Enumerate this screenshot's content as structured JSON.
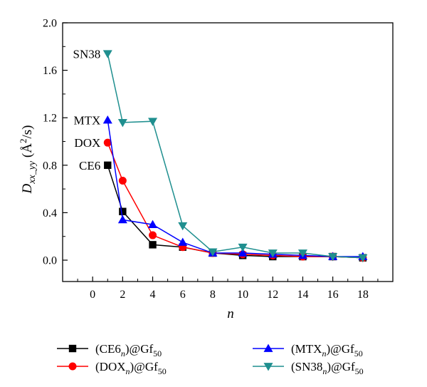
{
  "chart_data": {
    "type": "line",
    "x_ticks": [
      "0",
      "2",
      "4",
      "6",
      "8",
      "10",
      "12",
      "14",
      "16",
      "18"
    ],
    "x_tick_values": [
      0,
      2,
      4,
      6,
      8,
      10,
      12,
      14,
      16,
      18
    ],
    "y_ticks": [
      "0.0",
      "0.4",
      "0.8",
      "1.2",
      "1.6",
      "2.0"
    ],
    "y_tick_values": [
      0,
      0.4,
      0.8,
      1.2,
      1.6,
      2.0
    ],
    "xlim": [
      -2,
      20
    ],
    "ylim": [
      -0.18,
      2.0
    ],
    "xlabel": "n",
    "ylabel": {
      "main": "D",
      "sub": "xx_yy",
      "unit_open": " (",
      "unit_a": "Å",
      "unit_sup": "2",
      "unit_rest": "/s)"
    },
    "grid": false,
    "legend_position": "bottom",
    "series": [
      {
        "key": "ce6",
        "legend": {
          "prefix": "(CE6",
          "sub": "n",
          "mid": ")@Gf",
          "sub2": "50"
        },
        "color": "#000000",
        "marker": "square",
        "x": [
          1,
          2,
          4,
          6,
          8,
          10,
          12,
          14,
          16,
          18
        ],
        "y": [
          0.8,
          0.41,
          0.13,
          0.11,
          0.06,
          0.04,
          0.03,
          0.03,
          0.03,
          0.02
        ]
      },
      {
        "key": "dox",
        "legend": {
          "prefix": "(DOX",
          "sub": "n",
          "mid": ")@Gf",
          "sub2": "50"
        },
        "color": "#ff0000",
        "marker": "circle",
        "x": [
          1,
          2,
          4,
          6,
          8,
          10,
          12,
          14,
          16,
          18
        ],
        "y": [
          0.99,
          0.67,
          0.21,
          0.11,
          0.06,
          0.05,
          0.04,
          0.03,
          0.03,
          0.02
        ]
      },
      {
        "key": "mtx",
        "legend": {
          "prefix": "(MTX",
          "sub": "n",
          "mid": ")@Gf",
          "sub2": "50"
        },
        "color": "#0000ff",
        "marker": "triangle-up",
        "x": [
          1,
          2,
          4,
          6,
          8,
          10,
          12,
          14,
          16,
          18
        ],
        "y": [
          1.18,
          0.34,
          0.3,
          0.15,
          0.06,
          0.06,
          0.05,
          0.04,
          0.03,
          0.03
        ]
      },
      {
        "key": "sn38",
        "legend": {
          "prefix": "(SN38",
          "sub": "n",
          "mid": ")@Gf",
          "sub2": "50"
        },
        "color": "#1f8f8f",
        "marker": "triangle-down",
        "x": [
          1,
          2,
          4,
          6,
          8,
          10,
          12,
          14,
          16,
          18
        ],
        "y": [
          1.74,
          1.16,
          1.17,
          0.29,
          0.07,
          0.11,
          0.06,
          0.06,
          0.03,
          0.02
        ]
      }
    ],
    "annotations": [
      {
        "text": "SN38",
        "x": 1,
        "y": 1.74
      },
      {
        "text": "MTX",
        "x": 1,
        "y": 1.18
      },
      {
        "text": "DOX",
        "x": 1,
        "y": 0.99
      },
      {
        "text": "CE6",
        "x": 1,
        "y": 0.8
      }
    ]
  }
}
